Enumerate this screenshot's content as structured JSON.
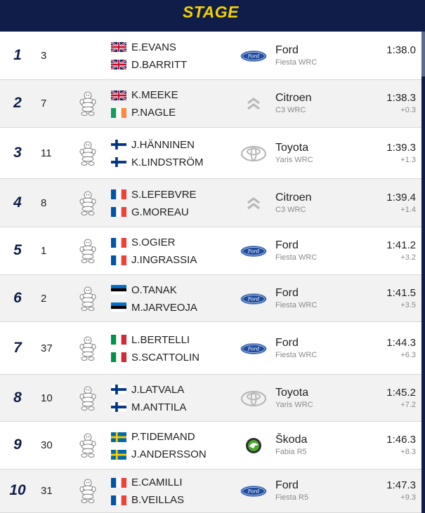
{
  "header": {
    "title": "STAGE"
  },
  "colors": {
    "header_bg": "#0f1d48",
    "title": "#f4d000",
    "row_alt": "#f2f2f2"
  },
  "rows": [
    {
      "pos": "1",
      "num": "3",
      "tyre": false,
      "driver": "E.EVANS",
      "driver_flag": "gb-flag-icon",
      "codriver": "D.BARRITT",
      "codriver_flag": "gb-flag-icon",
      "logo": "ford-logo-icon",
      "make": "Ford",
      "model": "Fiesta WRC",
      "time": "1:38.0",
      "gap": ""
    },
    {
      "pos": "2",
      "num": "7",
      "tyre": true,
      "driver": "K.MEEKE",
      "driver_flag": "gb-flag-icon",
      "codriver": "P.NAGLE",
      "codriver_flag": "ie-flag-icon",
      "logo": "citroen-logo-icon",
      "make": "Citroen",
      "model": "C3 WRC",
      "time": "1:38.3",
      "gap": "+0.3"
    },
    {
      "pos": "3",
      "num": "11",
      "tyre": true,
      "driver": "J.HÄNNINEN",
      "driver_flag": "fi-flag-icon",
      "codriver": "K.LINDSTRÖM",
      "codriver_flag": "fi-flag-icon",
      "logo": "toyota-logo-icon",
      "make": "Toyota",
      "model": "Yaris WRC",
      "time": "1:39.3",
      "gap": "+1.3"
    },
    {
      "pos": "4",
      "num": "8",
      "tyre": true,
      "driver": "S.LEFEBVRE",
      "driver_flag": "fr-flag-icon",
      "codriver": "G.MOREAU",
      "codriver_flag": "fr-flag-icon",
      "logo": "citroen-logo-icon",
      "make": "Citroen",
      "model": "C3 WRC",
      "time": "1:39.4",
      "gap": "+1.4"
    },
    {
      "pos": "5",
      "num": "1",
      "tyre": true,
      "driver": "S.OGIER",
      "driver_flag": "fr-flag-icon",
      "codriver": "J.INGRASSIA",
      "codriver_flag": "fr-flag-icon",
      "logo": "ford-logo-icon",
      "make": "Ford",
      "model": "Fiesta WRC",
      "time": "1:41.2",
      "gap": "+3.2"
    },
    {
      "pos": "6",
      "num": "2",
      "tyre": true,
      "driver": "O.TANAK",
      "driver_flag": "ee-flag-icon",
      "codriver": "M.JARVEOJA",
      "codriver_flag": "ee-flag-icon",
      "logo": "ford-logo-icon",
      "make": "Ford",
      "model": "Fiesta WRC",
      "time": "1:41.5",
      "gap": "+3.5"
    },
    {
      "pos": "7",
      "num": "37",
      "tyre": true,
      "driver": "L.BERTELLI",
      "driver_flag": "it-flag-icon",
      "codriver": "S.SCATTOLIN",
      "codriver_flag": "it-flag-icon",
      "logo": "ford-logo-icon",
      "make": "Ford",
      "model": "Fiesta WRC",
      "time": "1:44.3",
      "gap": "+6.3"
    },
    {
      "pos": "8",
      "num": "10",
      "tyre": true,
      "driver": "J.LATVALA",
      "driver_flag": "fi-flag-icon",
      "codriver": "M.ANTTILA",
      "codriver_flag": "fi-flag-icon",
      "logo": "toyota-logo-icon",
      "make": "Toyota",
      "model": "Yaris WRC",
      "time": "1:45.2",
      "gap": "+7.2"
    },
    {
      "pos": "9",
      "num": "30",
      "tyre": true,
      "driver": "P.TIDEMAND",
      "driver_flag": "se-flag-icon",
      "codriver": "J.ANDERSSON",
      "codriver_flag": "se-flag-icon",
      "logo": "skoda-logo-icon",
      "make": "Škoda",
      "model": "Fabia R5",
      "time": "1:46.3",
      "gap": "+8.3"
    },
    {
      "pos": "10",
      "num": "31",
      "tyre": true,
      "driver": "E.CAMILLI",
      "driver_flag": "fr-flag-icon",
      "codriver": "B.VEILLAS",
      "codriver_flag": "fr-flag-icon",
      "logo": "ford-logo-icon",
      "make": "Ford",
      "model": "Fiesta R5",
      "time": "1:47.3",
      "gap": "+9.3"
    }
  ]
}
